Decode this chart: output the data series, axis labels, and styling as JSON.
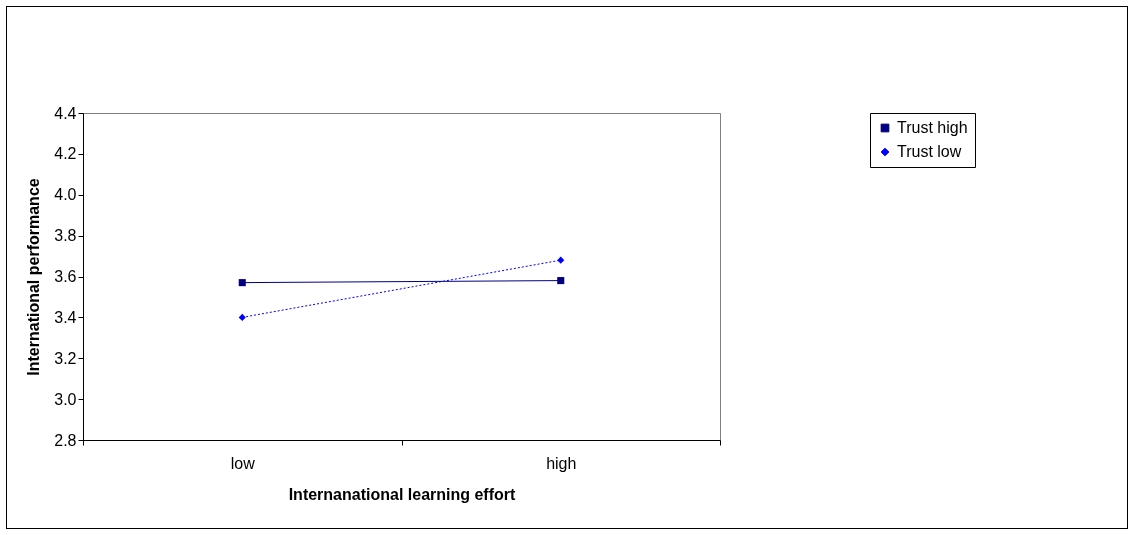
{
  "chart_data": {
    "type": "line",
    "xlabel": "Internanational learning effort",
    "ylabel": "International performance",
    "categories": [
      "low",
      "high"
    ],
    "series": [
      {
        "name": "Trust high",
        "color": "#000080",
        "values": [
          3.57,
          3.58
        ],
        "marker": "square",
        "line_style": "solid"
      },
      {
        "name": "Trust low",
        "color": "#0000ff",
        "values": [
          3.4,
          3.68
        ],
        "marker": "diamond",
        "line_style": "dotted"
      }
    ],
    "ylim": [
      2.8,
      4.4
    ],
    "yticks": [
      {
        "value": 2.8,
        "label": "2.8"
      },
      {
        "value": 3.0,
        "label": "3.0"
      },
      {
        "value": 3.2,
        "label": "3.2"
      },
      {
        "value": 3.4,
        "label": "3.4"
      },
      {
        "value": 3.6,
        "label": "3.6"
      },
      {
        "value": 3.8,
        "label": "3.8"
      },
      {
        "value": 4.0,
        "label": "4.0"
      },
      {
        "value": 4.2,
        "label": "4.2"
      },
      {
        "value": 4.4,
        "label": "4.4"
      }
    ],
    "grid": false,
    "legend": "right"
  }
}
